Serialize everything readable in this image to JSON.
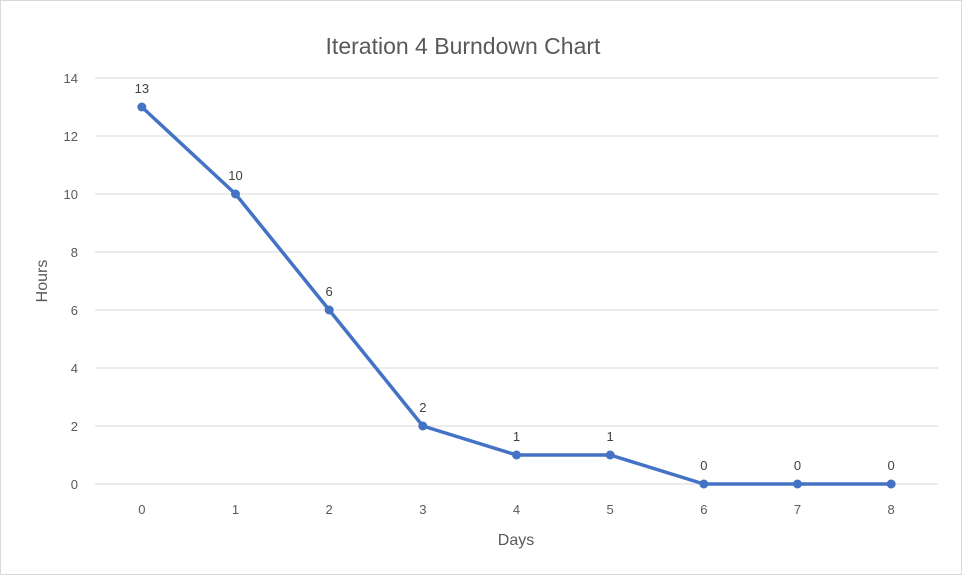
{
  "chart_data": {
    "type": "line",
    "title": "Iteration 4 Burndown Chart",
    "xlabel": "Days",
    "ylabel": "Hours",
    "x": [
      0,
      1,
      2,
      3,
      4,
      5,
      6,
      7,
      8
    ],
    "series": [
      {
        "values": [
          13,
          10,
          6,
          2,
          1,
          1,
          0,
          0,
          0
        ]
      }
    ],
    "ylim": [
      0,
      14
    ],
    "y_ticks": [
      0,
      2,
      4,
      6,
      8,
      10,
      12,
      14
    ],
    "grid": true,
    "legend": "none",
    "data_labels": true,
    "colors": {
      "line": "#4472c4",
      "grid": "#d9d9d9",
      "text": "#595959"
    }
  }
}
